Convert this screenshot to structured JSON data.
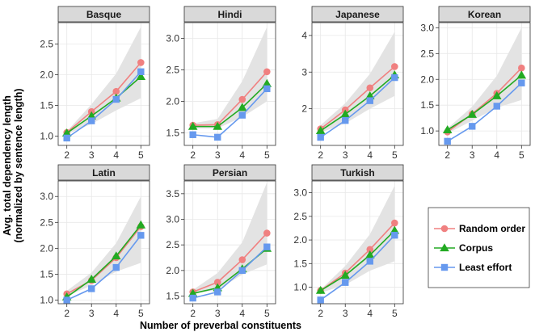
{
  "chart_data": {
    "type": "line",
    "layout": "facets",
    "xlabel": "Number of preverbal constituents",
    "ylabel": [
      "Avg. total dependency length",
      "(normalized by sentence length)"
    ],
    "x": [
      2,
      3,
      4,
      5
    ],
    "legend": {
      "placement": "right",
      "entries": [
        {
          "series": "Random order",
          "color": "#F08080",
          "marker": "circle"
        },
        {
          "series": "Corpus",
          "color": "#22AA22",
          "marker": "triangle"
        },
        {
          "series": "Least effort",
          "color": "#6699EE",
          "marker": "square"
        }
      ]
    },
    "band_color": "#E3E3E3",
    "grid": true,
    "facets": [
      {
        "name": "Basque",
        "ylim": [
          0.85,
          2.85
        ],
        "yticks": [
          "1.0",
          "1.5",
          "2.0",
          "2.5"
        ],
        "band_lower": [
          1.03,
          1.2,
          1.42,
          1.62
        ],
        "band_upper": [
          1.08,
          1.52,
          2.02,
          2.78
        ],
        "series": [
          {
            "name": "Random order",
            "values": [
              1.06,
              1.4,
              1.73,
              2.2
            ]
          },
          {
            "name": "Corpus",
            "values": [
              1.05,
              1.33,
              1.62,
              1.97
            ]
          },
          {
            "name": "Least effort",
            "values": [
              0.97,
              1.25,
              1.6,
              2.05
            ]
          }
        ]
      },
      {
        "name": "Hindi",
        "ylim": [
          1.3,
          3.25
        ],
        "yticks": [
          "1.5",
          "2.0",
          "2.5",
          "3.0"
        ],
        "band_lower": [
          1.57,
          1.57,
          1.75,
          2.0
        ],
        "band_upper": [
          1.65,
          1.72,
          2.32,
          3.18
        ],
        "series": [
          {
            "name": "Random order",
            "values": [
              1.62,
              1.63,
              2.03,
              2.47
            ]
          },
          {
            "name": "Corpus",
            "values": [
              1.6,
              1.6,
              1.9,
              2.28
            ]
          },
          {
            "name": "Least effort",
            "values": [
              1.47,
              1.43,
              1.78,
              2.2
            ]
          }
        ]
      },
      {
        "name": "Japanese",
        "ylim": [
          1.0,
          4.35
        ],
        "yticks": [
          "2",
          "3",
          "4"
        ],
        "band_lower": [
          1.35,
          1.6,
          2.0,
          2.35
        ],
        "band_upper": [
          1.55,
          2.15,
          2.95,
          4.1
        ],
        "series": [
          {
            "name": "Random order",
            "values": [
              1.45,
              1.97,
              2.57,
              3.15
            ]
          },
          {
            "name": "Corpus",
            "values": [
              1.4,
              1.85,
              2.35,
              2.92
            ]
          },
          {
            "name": "Least effort",
            "values": [
              1.22,
              1.68,
              2.22,
              2.85
            ]
          }
        ]
      },
      {
        "name": "Korean",
        "ylim": [
          0.72,
          3.1
        ],
        "yticks": [
          "1.0",
          "1.5",
          "2.0",
          "2.5",
          "3.0"
        ],
        "band_lower": [
          0.95,
          1.2,
          1.45,
          1.6
        ],
        "band_upper": [
          1.05,
          1.47,
          2.07,
          3.0
        ],
        "series": [
          {
            "name": "Random order",
            "values": [
              0.98,
              1.33,
              1.73,
              2.22
            ]
          },
          {
            "name": "Corpus",
            "values": [
              1.02,
              1.32,
              1.68,
              2.08
            ]
          },
          {
            "name": "Least effort",
            "values": [
              0.8,
              1.09,
              1.48,
              1.93
            ]
          }
        ]
      },
      {
        "name": "Latin",
        "ylim": [
          0.93,
          3.3
        ],
        "yticks": [
          "1.0",
          "1.5",
          "2.0",
          "2.5",
          "3.0"
        ],
        "band_lower": [
          1.08,
          1.28,
          1.55,
          1.72
        ],
        "band_upper": [
          1.18,
          1.53,
          2.1,
          3.0
        ],
        "series": [
          {
            "name": "Random order",
            "values": [
              1.12,
              1.38,
              1.82,
              2.42
            ]
          },
          {
            "name": "Corpus",
            "values": [
              1.06,
              1.4,
              1.85,
              2.45
            ]
          },
          {
            "name": "Least effort",
            "values": [
              1.0,
              1.22,
              1.63,
              2.25
            ]
          }
        ]
      },
      {
        "name": "Persian",
        "ylim": [
          1.35,
          3.75
        ],
        "yticks": [
          "1.5",
          "2.0",
          "2.5",
          "3.0",
          "3.5"
        ],
        "band_lower": [
          1.55,
          1.62,
          1.92,
          2.12
        ],
        "band_upper": [
          1.62,
          1.95,
          2.55,
          3.72
        ],
        "series": [
          {
            "name": "Random order",
            "values": [
              1.58,
              1.77,
              2.21,
              2.73
            ]
          },
          {
            "name": "Corpus",
            "values": [
              1.55,
              1.66,
              2.03,
              2.43
            ]
          },
          {
            "name": "Least effort",
            "values": [
              1.46,
              1.58,
              2.0,
              2.46
            ]
          }
        ]
      },
      {
        "name": "Turkish",
        "ylim": [
          0.65,
          3.25
        ],
        "yticks": [
          "1.0",
          "1.5",
          "2.0",
          "2.5",
          "3.0"
        ],
        "band_lower": [
          0.88,
          1.05,
          1.35,
          1.55
        ],
        "band_upper": [
          0.95,
          1.45,
          2.12,
          3.15
        ],
        "series": [
          {
            "name": "Random order",
            "values": [
              0.93,
              1.3,
              1.8,
              2.36
            ]
          },
          {
            "name": "Corpus",
            "values": [
              0.93,
              1.25,
              1.68,
              2.2
            ]
          },
          {
            "name": "Least effort",
            "values": [
              0.73,
              1.1,
              1.55,
              2.1
            ]
          }
        ]
      }
    ]
  }
}
